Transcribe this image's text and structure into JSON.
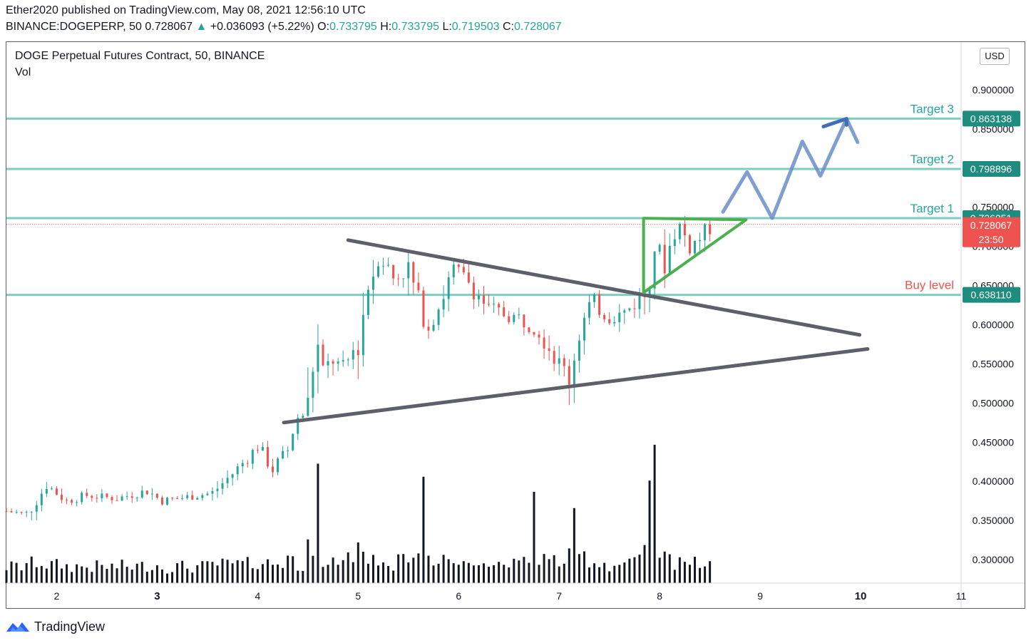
{
  "header": {
    "publisher_line": "Ether2020 published on TradingView.com, May 08, 2021 12:56:10 UTC",
    "symbol": "BINANCE:DOGEPERP, 50",
    "last": "0.728067",
    "change": "+0.036093 (+5.22%)",
    "o_label": "O:",
    "o_value": "0.733795",
    "h_label": "H:",
    "h_value": "0.733795",
    "l_label": "L:",
    "l_value": "0.719503",
    "c_label": "C:",
    "c_value": "0.728067"
  },
  "legend": {
    "title": "DOGE Perpetual Futures Contract, 50, BINANCE",
    "vol": "Vol"
  },
  "currency_badge": "USD",
  "footer": {
    "brand": "TradingView"
  },
  "colors": {
    "up": "#26a69a",
    "down": "#ef5350",
    "level_line": "#7fcdbe",
    "target_text": "#26a69a",
    "buy_text": "#ef5350",
    "trendline": "#5d606b",
    "triangle": "#4caf50",
    "projection": "#6a8ec8",
    "volume": "#131722",
    "price_tag": "#ef5350"
  },
  "chart_data": {
    "type": "candlestick",
    "title": "DOGE Perpetual Futures Contract, 50, BINANCE",
    "x_ticks": [
      "2",
      "3",
      "4",
      "5",
      "6",
      "7",
      "8",
      "9",
      "10",
      "11"
    ],
    "bold_ticks": [
      "3",
      "10"
    ],
    "x_range": [
      1.5,
      11.0
    ],
    "y_range": [
      0.27,
      0.96
    ],
    "y_ticks": [
      "0.900000",
      "0.850000",
      "0.800000",
      "0.750000",
      "0.700000",
      "0.650000",
      "0.600000",
      "0.550000",
      "0.500000",
      "0.450000",
      "0.400000",
      "0.350000",
      "0.300000"
    ],
    "last_price": {
      "value": "0.728067",
      "countdown": "23:50"
    },
    "levels": [
      {
        "label": "Target 3",
        "value": "0.863138",
        "kind": "target"
      },
      {
        "label": "Target 2",
        "value": "0.798896",
        "kind": "target"
      },
      {
        "label": "Target 1",
        "value": "0.736051",
        "kind": "target"
      },
      {
        "label": "Buy level",
        "value": "0.638110",
        "kind": "buy"
      }
    ],
    "trendlines": [
      {
        "name": "descending resistance",
        "points": [
          [
            4.9,
            0.708
          ],
          [
            9.99,
            0.587
          ]
        ]
      },
      {
        "name": "ascending support",
        "points": [
          [
            4.26,
            0.475
          ],
          [
            10.07,
            0.569
          ]
        ]
      }
    ],
    "triangle": [
      [
        7.84,
        0.736
      ],
      [
        8.86,
        0.734
      ],
      [
        7.84,
        0.641
      ]
    ],
    "projection": [
      [
        8.63,
        0.744
      ],
      [
        8.87,
        0.795
      ],
      [
        9.12,
        0.736
      ],
      [
        9.42,
        0.834
      ],
      [
        9.6,
        0.79
      ],
      [
        9.86,
        0.863
      ],
      [
        9.97,
        0.833
      ]
    ],
    "projection_arrow": [
      [
        9.63,
        0.853
      ],
      [
        9.86,
        0.863
      ],
      [
        9.86,
        0.855
      ]
    ],
    "price_path": [
      [
        1.5,
        0.362
      ],
      [
        1.7,
        0.358
      ],
      [
        1.9,
        0.395
      ],
      [
        2.1,
        0.375
      ],
      [
        2.3,
        0.382
      ],
      [
        2.6,
        0.378
      ],
      [
        2.9,
        0.388
      ],
      [
        3.05,
        0.375
      ],
      [
        3.3,
        0.38
      ],
      [
        3.55,
        0.385
      ],
      [
        3.75,
        0.41
      ],
      [
        3.9,
        0.43
      ],
      [
        4.0,
        0.445
      ],
      [
        4.15,
        0.415
      ],
      [
        4.3,
        0.44
      ],
      [
        4.38,
        0.48
      ],
      [
        4.5,
        0.49
      ],
      [
        4.58,
        0.58
      ],
      [
        4.65,
        0.54
      ],
      [
        4.75,
        0.555
      ],
      [
        4.85,
        0.54
      ],
      [
        5.0,
        0.58
      ],
      [
        5.1,
        0.65
      ],
      [
        5.22,
        0.69
      ],
      [
        5.35,
        0.66
      ],
      [
        5.5,
        0.67
      ],
      [
        5.62,
        0.62
      ],
      [
        5.7,
        0.6
      ],
      [
        5.82,
        0.63
      ],
      [
        5.95,
        0.67
      ],
      [
        6.1,
        0.655
      ],
      [
        6.3,
        0.62
      ],
      [
        6.6,
        0.608
      ],
      [
        6.8,
        0.595
      ],
      [
        7.0,
        0.55
      ],
      [
        7.1,
        0.535
      ],
      [
        7.2,
        0.59
      ],
      [
        7.32,
        0.63
      ],
      [
        7.5,
        0.61
      ],
      [
        7.65,
        0.615
      ],
      [
        7.85,
        0.64
      ],
      [
        7.95,
        0.7
      ],
      [
        8.05,
        0.68
      ],
      [
        8.18,
        0.73
      ],
      [
        8.3,
        0.7
      ],
      [
        8.45,
        0.715
      ],
      [
        8.52,
        0.728
      ]
    ],
    "volume_spikes": [
      [
        4.58,
        1.0
      ],
      [
        5.65,
        0.93
      ],
      [
        6.75,
        0.77
      ],
      [
        7.15,
        0.62
      ],
      [
        7.93,
        1.18
      ],
      [
        7.88,
        0.85
      ]
    ],
    "volume_range": [
      0,
      1.25
    ]
  }
}
